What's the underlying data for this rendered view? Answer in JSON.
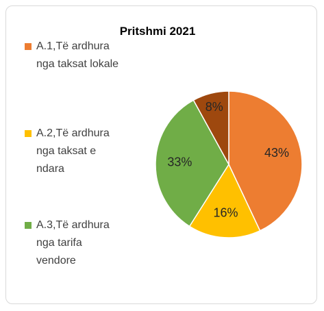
{
  "chart_data": {
    "type": "pie",
    "title": "Pritshmi 2021",
    "categories": [
      "A.1,Të ardhura nga taksat lokale",
      "A.2,Të ardhura nga taksat e ndara",
      "A.3,Të ardhura nga tarifa vendore",
      null
    ],
    "values": [
      43,
      16,
      33,
      8
    ],
    "value_labels": [
      "43%",
      "16%",
      "33%",
      "8%"
    ],
    "colors": [
      "#ed7d31",
      "#ffc000",
      "#70ad47",
      "#9e480e"
    ],
    "legend": "left"
  }
}
